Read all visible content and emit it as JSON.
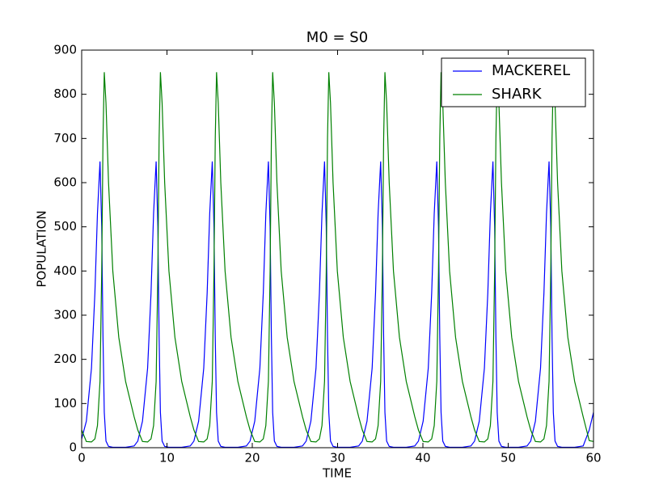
{
  "chart_data": {
    "type": "line",
    "title": "M0 =  S0",
    "xlabel": "TIME",
    "ylabel": "POPULATION",
    "xlim": [
      0,
      60
    ],
    "ylim": [
      0,
      900
    ],
    "xticks": [
      0,
      10,
      20,
      30,
      40,
      50,
      60
    ],
    "yticks": [
      0,
      100,
      200,
      300,
      400,
      500,
      600,
      700,
      800,
      900
    ],
    "legend": "upper right",
    "x": [
      0,
      0.55,
      1.15,
      1.55,
      1.85,
      2.15,
      2.35,
      2.5,
      2.65,
      2.85,
      3.15,
      3.65,
      4.35,
      5.15,
      6.15,
      6.58,
      7.13,
      7.73,
      8.13,
      8.43,
      8.73,
      8.93,
      9.08,
      9.23,
      9.43,
      9.73,
      10.23,
      10.93,
      11.73,
      12.73,
      13.16,
      13.71,
      14.31,
      14.71,
      15.01,
      15.31,
      15.51,
      15.66,
      15.81,
      16.01,
      16.31,
      16.81,
      17.51,
      18.31,
      19.31,
      19.74,
      20.29,
      20.89,
      21.29,
      21.59,
      21.89,
      22.09,
      22.24,
      22.39,
      22.59,
      22.89,
      23.39,
      24.09,
      24.89,
      25.89,
      26.32,
      26.87,
      27.47,
      27.87,
      28.17,
      28.47,
      28.67,
      28.82,
      28.97,
      29.17,
      29.47,
      29.97,
      30.67,
      31.47,
      32.47,
      32.9,
      33.45,
      34.05,
      34.45,
      34.75,
      35.05,
      35.25,
      35.4,
      35.55,
      35.75,
      36.05,
      36.55,
      37.25,
      38.05,
      39.05,
      39.48,
      40.03,
      40.63,
      41.03,
      41.33,
      41.63,
      41.83,
      41.98,
      42.13,
      42.33,
      42.63,
      43.13,
      43.83,
      44.63,
      45.63,
      46.06,
      46.61,
      47.21,
      47.61,
      47.91,
      48.21,
      48.41,
      48.56,
      48.71,
      48.91,
      49.21,
      49.71,
      50.41,
      51.21,
      52.21,
      52.64,
      53.19,
      53.79,
      54.19,
      54.49,
      54.79,
      54.99,
      55.14,
      55.29,
      55.49,
      55.79,
      56.29,
      56.99,
      57.79,
      58.79,
      59.5,
      60
    ],
    "series": [
      {
        "name": "MACKEREL",
        "color": "#0000ff",
        "values": [
          20,
          60,
          180,
          350,
          530,
          648,
          500,
          250,
          80,
          15,
          3,
          1,
          1,
          1,
          4,
          15,
          60,
          180,
          350,
          530,
          648,
          500,
          250,
          80,
          15,
          3,
          1,
          1,
          1,
          4,
          15,
          60,
          180,
          350,
          530,
          648,
          500,
          250,
          80,
          15,
          3,
          1,
          1,
          1,
          4,
          15,
          60,
          180,
          350,
          530,
          648,
          500,
          250,
          80,
          15,
          3,
          1,
          1,
          1,
          4,
          15,
          60,
          180,
          350,
          530,
          648,
          500,
          250,
          80,
          15,
          3,
          1,
          1,
          1,
          4,
          15,
          60,
          180,
          350,
          530,
          648,
          500,
          250,
          80,
          15,
          3,
          1,
          1,
          1,
          4,
          15,
          60,
          180,
          350,
          530,
          648,
          500,
          250,
          80,
          15,
          3,
          1,
          1,
          1,
          4,
          15,
          60,
          180,
          350,
          530,
          648,
          500,
          250,
          80,
          15,
          3,
          1,
          1,
          1,
          4,
          15,
          60,
          180,
          350,
          530,
          648,
          500,
          250,
          80,
          15,
          3,
          1,
          1,
          1,
          4,
          40,
          80
        ]
      },
      {
        "name": "SHARK",
        "color": "#008000",
        "values": [
          40,
          14,
          13,
          20,
          50,
          150,
          400,
          700,
          850,
          780,
          600,
          400,
          250,
          150,
          70,
          40,
          14,
          13,
          20,
          50,
          150,
          400,
          700,
          850,
          780,
          600,
          400,
          250,
          150,
          70,
          40,
          14,
          13,
          20,
          50,
          150,
          400,
          700,
          850,
          780,
          600,
          400,
          250,
          150,
          70,
          40,
          14,
          13,
          20,
          50,
          150,
          400,
          700,
          850,
          780,
          600,
          400,
          250,
          150,
          70,
          40,
          14,
          13,
          20,
          50,
          150,
          400,
          700,
          850,
          780,
          600,
          400,
          250,
          150,
          70,
          40,
          14,
          13,
          20,
          50,
          150,
          400,
          700,
          850,
          780,
          600,
          400,
          250,
          150,
          70,
          40,
          14,
          13,
          20,
          50,
          150,
          400,
          700,
          850,
          780,
          600,
          400,
          250,
          150,
          70,
          40,
          14,
          13,
          20,
          50,
          150,
          400,
          700,
          850,
          780,
          600,
          400,
          250,
          150,
          70,
          40,
          14,
          13,
          20,
          50,
          150,
          400,
          700,
          850,
          780,
          600,
          400,
          250,
          150,
          70,
          16,
          14
        ]
      }
    ]
  }
}
